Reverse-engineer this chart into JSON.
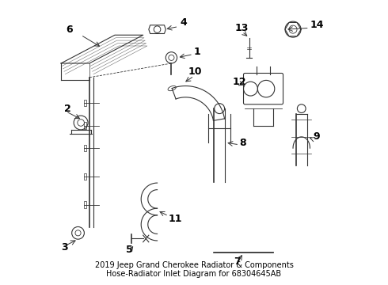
{
  "title": "2019 Jeep Grand Cherokee Radiator & Components\nHose-Radiator Inlet Diagram for 68304645AB",
  "bg_color": "#ffffff",
  "line_color": "#333333",
  "text_color": "#000000",
  "font_size_labels": 9,
  "font_size_title": 7
}
